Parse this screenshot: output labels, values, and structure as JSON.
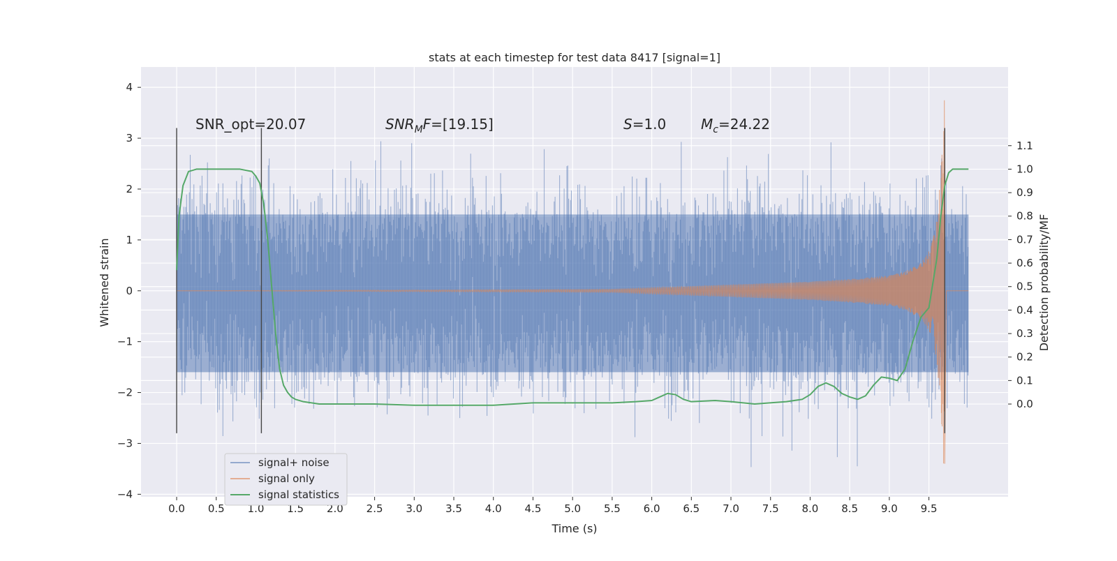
{
  "chart_data": {
    "type": "line",
    "title": "stats at each timestep for test data 8417 [signal=1]",
    "xlabel": "Time (s)",
    "ylabel": "Whitened strain",
    "y2label": "Detection probability/MF",
    "xlim": [
      -0.45,
      10.5
    ],
    "ylim": [
      -4.05,
      4.4
    ],
    "y2lim": [
      -0.395,
      1.435
    ],
    "x_ticks": [
      0.0,
      0.5,
      1.0,
      1.5,
      2.0,
      2.5,
      3.0,
      3.5,
      4.0,
      4.5,
      5.0,
      5.5,
      6.0,
      6.5,
      7.0,
      7.5,
      8.0,
      8.5,
      9.0,
      9.5
    ],
    "x_tick_labels": [
      "0.0",
      "0.5",
      "1.0",
      "1.5",
      "2.0",
      "2.5",
      "3.0",
      "3.5",
      "4.0",
      "4.5",
      "5.0",
      "5.5",
      "6.0",
      "6.5",
      "7.0",
      "7.5",
      "8.0",
      "8.5",
      "9.0",
      "9.5"
    ],
    "y_ticks": [
      4,
      3,
      2,
      1,
      0,
      -1,
      -2,
      -3,
      -4
    ],
    "y_tick_labels": [
      "4",
      "3",
      "2",
      "1",
      "0",
      "−1",
      "−2",
      "−3",
      "−4"
    ],
    "y2_ticks": [
      1.1,
      1.0,
      0.9,
      0.8,
      0.7,
      0.6,
      0.5,
      0.4,
      0.3,
      0.2,
      0.1,
      0.0
    ],
    "y2_tick_labels": [
      "1.1",
      "1.0",
      "0.9",
      "0.8",
      "0.7",
      "0.6",
      "0.5",
      "0.4",
      "0.3",
      "0.2",
      "0.1",
      "0.0"
    ],
    "grid": true,
    "legend_position": "lower-left",
    "annotations": [
      {
        "label": "SNR_opt=20.07",
        "x": 0.2,
        "y": 3.25
      },
      {
        "label": "SNR_MF=[19.15]",
        "x": 2.6,
        "y": 3.25
      },
      {
        "label": "S=1.0",
        "x": 5.6,
        "y": 3.25
      },
      {
        "label": "M_c=24.22",
        "x": 6.6,
        "y": 3.25
      }
    ],
    "vertical_markers": [
      {
        "x": 0.0,
        "y_range": [
          -2.8,
          3.2
        ]
      },
      {
        "x": 1.07,
        "y_range": [
          -2.8,
          3.2
        ]
      },
      {
        "x": 9.7,
        "y_range": [
          -2.8,
          3.2
        ]
      }
    ],
    "series": [
      {
        "name": "signal+ noise",
        "color": "#4c72b0",
        "axis": "left",
        "x_range": [
          0.0,
          10.0
        ],
        "band_min": -1.6,
        "band_max": 1.5,
        "spike_max": 3.42,
        "spike_min": -3.65
      },
      {
        "name": "signal only",
        "color": "#dd8452",
        "axis": "left",
        "x_range": [
          0.0,
          10.0
        ],
        "envelope": {
          "x": [
            0.0,
            5.5,
            6.0,
            6.5,
            7.0,
            7.5,
            8.0,
            8.5,
            9.0,
            9.2,
            9.4,
            9.5,
            9.55,
            9.6,
            9.65,
            9.68,
            9.7
          ],
          "amp": [
            0.0,
            0.03,
            0.06,
            0.09,
            0.12,
            0.15,
            0.18,
            0.23,
            0.3,
            0.38,
            0.55,
            0.78,
            1.0,
            1.4,
            2.3,
            3.3,
            4.0
          ]
        }
      },
      {
        "name": "signal statistics",
        "color": "#55a868",
        "axis": "right",
        "x": [
          0.0,
          0.03,
          0.08,
          0.15,
          0.25,
          0.4,
          0.6,
          0.8,
          0.95,
          1.0,
          1.05,
          1.1,
          1.15,
          1.2,
          1.25,
          1.3,
          1.35,
          1.4,
          1.45,
          1.5,
          1.6,
          1.8,
          2.0,
          2.5,
          3.0,
          3.5,
          4.0,
          4.5,
          5.0,
          5.5,
          5.8,
          6.0,
          6.1,
          6.2,
          6.3,
          6.4,
          6.5,
          6.8,
          7.0,
          7.3,
          7.7,
          7.9,
          8.0,
          8.1,
          8.2,
          8.3,
          8.4,
          8.5,
          8.6,
          8.7,
          8.8,
          8.9,
          9.0,
          9.1,
          9.2,
          9.3,
          9.4,
          9.5,
          9.6,
          9.65,
          9.7,
          9.75,
          9.8,
          9.85,
          9.9,
          10.0
        ],
        "y": [
          0.57,
          0.8,
          0.93,
          0.99,
          1.0,
          1.0,
          1.0,
          1.0,
          0.99,
          0.97,
          0.94,
          0.85,
          0.7,
          0.5,
          0.3,
          0.15,
          0.08,
          0.05,
          0.03,
          0.02,
          0.01,
          0.0,
          0.0,
          0.0,
          -0.005,
          -0.005,
          -0.005,
          0.005,
          0.005,
          0.005,
          0.01,
          0.015,
          0.03,
          0.045,
          0.04,
          0.02,
          0.01,
          0.015,
          0.01,
          0.0,
          0.01,
          0.02,
          0.04,
          0.075,
          0.09,
          0.075,
          0.045,
          0.03,
          0.02,
          0.035,
          0.08,
          0.115,
          0.11,
          0.1,
          0.15,
          0.27,
          0.37,
          0.41,
          0.62,
          0.8,
          0.93,
          0.985,
          1.0,
          1.0,
          1.0,
          1.0
        ]
      }
    ]
  }
}
